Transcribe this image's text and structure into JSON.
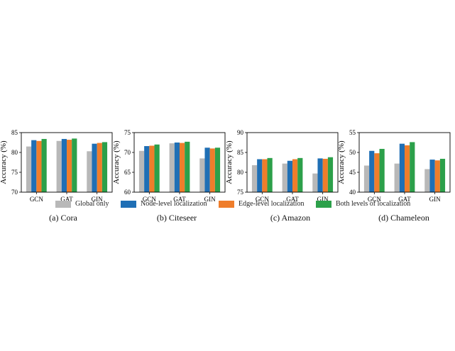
{
  "legend": [
    {
      "label": "Global only",
      "color": "#b8b8b8"
    },
    {
      "label": "Node-level localization",
      "color": "#1f6fb5"
    },
    {
      "label": "Edge-level localization",
      "color": "#ef7d2b"
    },
    {
      "label": "Both levels of localization",
      "color": "#2ca04a"
    }
  ],
  "chart_data": [
    {
      "type": "bar",
      "caption": "(a) Cora",
      "ylabel": "Accuracy (%)",
      "categories": [
        "GCN",
        "GAT",
        "GIN"
      ],
      "ylim": [
        70,
        85
      ],
      "yticks": [
        70,
        75,
        80,
        85
      ],
      "series": [
        {
          "name": "Global only",
          "values": [
            81.5,
            82.9,
            80.3
          ]
        },
        {
          "name": "Node-level localization",
          "values": [
            83.1,
            83.4,
            82.2
          ]
        },
        {
          "name": "Edge-level localization",
          "values": [
            82.9,
            83.2,
            82.4
          ]
        },
        {
          "name": "Both levels of localization",
          "values": [
            83.4,
            83.5,
            82.6
          ]
        }
      ]
    },
    {
      "type": "bar",
      "caption": "(b) Citeseer",
      "ylabel": "Accuracy (%)",
      "categories": [
        "GCN",
        "GAT",
        "GIN"
      ],
      "ylim": [
        60,
        75
      ],
      "yticks": [
        60,
        65,
        70,
        75
      ],
      "series": [
        {
          "name": "Global only",
          "values": [
            70.4,
            72.3,
            68.5
          ]
        },
        {
          "name": "Node-level localization",
          "values": [
            71.6,
            72.5,
            71.2
          ]
        },
        {
          "name": "Edge-level localization",
          "values": [
            71.7,
            72.4,
            71.0
          ]
        },
        {
          "name": "Both levels of localization",
          "values": [
            72.0,
            72.7,
            71.2
          ]
        }
      ]
    },
    {
      "type": "bar",
      "caption": "(c) Amazon",
      "ylabel": "Accuracy (%)",
      "categories": [
        "GCN",
        "GAT",
        "GIN"
      ],
      "ylim": [
        75,
        90
      ],
      "yticks": [
        75,
        80,
        85,
        90
      ],
      "series": [
        {
          "name": "Global only",
          "values": [
            81.8,
            82.2,
            79.7
          ]
        },
        {
          "name": "Node-level localization",
          "values": [
            83.3,
            82.9,
            83.5
          ]
        },
        {
          "name": "Edge-level localization",
          "values": [
            83.3,
            83.3,
            83.4
          ]
        },
        {
          "name": "Both levels of localization",
          "values": [
            83.6,
            83.6,
            83.8
          ]
        }
      ]
    },
    {
      "type": "bar",
      "caption": "(d) Chameleon",
      "ylabel": "Accuracy (%)",
      "categories": [
        "GCN",
        "GAT",
        "GIN"
      ],
      "ylim": [
        40,
        55
      ],
      "yticks": [
        40,
        45,
        50,
        55
      ],
      "series": [
        {
          "name": "Global only",
          "values": [
            46.7,
            47.2,
            45.8
          ]
        },
        {
          "name": "Node-level localization",
          "values": [
            50.4,
            52.2,
            48.2
          ]
        },
        {
          "name": "Edge-level localization",
          "values": [
            49.8,
            51.8,
            48.0
          ]
        },
        {
          "name": "Both levels of localization",
          "values": [
            50.9,
            52.6,
            48.4
          ]
        }
      ]
    }
  ]
}
